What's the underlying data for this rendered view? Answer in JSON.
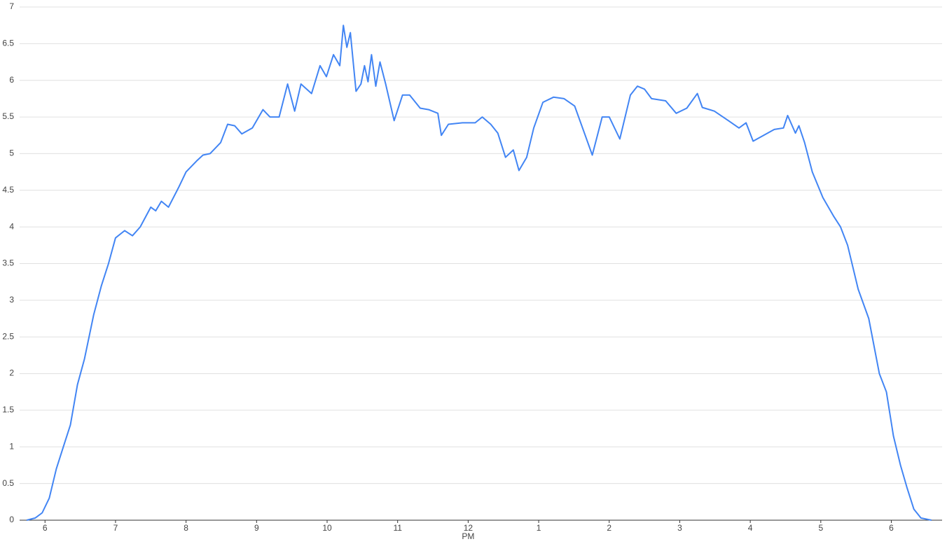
{
  "chart_data": {
    "type": "line",
    "x": [
      5.74,
      5.86,
      5.96,
      6.06,
      6.16,
      6.26,
      6.36,
      6.46,
      6.56,
      6.69,
      6.8,
      6.9,
      7.0,
      7.13,
      7.24,
      7.35,
      7.5,
      7.57,
      7.65,
      7.75,
      7.9,
      8.0,
      8.15,
      8.24,
      8.34,
      8.49,
      8.59,
      8.69,
      8.79,
      8.94,
      9.09,
      9.19,
      9.32,
      9.44,
      9.54,
      9.63,
      9.78,
      9.9,
      9.99,
      10.09,
      10.18,
      10.23,
      10.28,
      10.33,
      10.41,
      10.48,
      10.53,
      10.58,
      10.63,
      10.69,
      10.75,
      10.83,
      10.95,
      11.07,
      11.17,
      11.32,
      11.44,
      11.57,
      11.62,
      11.72,
      11.92,
      12.1,
      12.2,
      12.32,
      12.42,
      12.53,
      12.64,
      12.72,
      12.83,
      12.93,
      13.06,
      13.21,
      13.36,
      13.51,
      13.66,
      13.76,
      13.9,
      14.0,
      14.15,
      14.3,
      14.4,
      14.5,
      14.6,
      14.8,
      14.95,
      15.1,
      15.25,
      15.32,
      15.49,
      15.69,
      15.84,
      15.94,
      16.04,
      16.19,
      16.34,
      16.47,
      16.53,
      16.64,
      16.69,
      16.77,
      16.88,
      17.03,
      17.18,
      17.28,
      17.38,
      17.53,
      17.68,
      17.83,
      17.93,
      18.03,
      18.13,
      18.22,
      18.32,
      18.42,
      18.57
    ],
    "series": [
      {
        "color": "#4285f4",
        "values": [
          0,
          0.03,
          0.1,
          0.3,
          0.7,
          1.0,
          1.3,
          1.85,
          2.2,
          2.8,
          3.2,
          3.5,
          3.85,
          3.95,
          3.88,
          4.0,
          4.27,
          4.22,
          4.35,
          4.27,
          4.55,
          4.75,
          4.9,
          4.98,
          5.0,
          5.15,
          5.4,
          5.38,
          5.27,
          5.35,
          5.6,
          5.5,
          5.5,
          5.95,
          5.58,
          5.95,
          5.82,
          6.2,
          6.05,
          6.35,
          6.2,
          6.75,
          6.45,
          6.65,
          5.85,
          5.95,
          6.2,
          5.98,
          6.35,
          5.92,
          6.25,
          5.95,
          5.45,
          5.8,
          5.8,
          5.62,
          5.6,
          5.55,
          5.25,
          5.4,
          5.42,
          5.42,
          5.5,
          5.4,
          5.28,
          4.95,
          5.05,
          4.77,
          4.95,
          5.35,
          5.7,
          5.77,
          5.75,
          5.65,
          5.25,
          4.98,
          5.5,
          5.5,
          5.2,
          5.8,
          5.92,
          5.88,
          5.75,
          5.72,
          5.55,
          5.62,
          5.82,
          5.63,
          5.58,
          5.45,
          5.35,
          5.42,
          5.17,
          5.25,
          5.33,
          5.35,
          5.52,
          5.28,
          5.38,
          5.15,
          4.75,
          4.4,
          4.15,
          4.0,
          3.75,
          3.15,
          2.75,
          2.0,
          1.75,
          1.15,
          0.75,
          0.45,
          0.15,
          0.03,
          0
        ]
      }
    ],
    "xlim": [
      5.64,
      18.72
    ],
    "xticks": [
      6,
      7,
      8,
      9,
      10,
      11,
      {
        "value": 12,
        "label": "12",
        "sublabel": "PM"
      },
      {
        "value": 13,
        "label": "1"
      },
      {
        "value": 14,
        "label": "2"
      },
      {
        "value": 15,
        "label": "3"
      },
      {
        "value": 16,
        "label": "4"
      },
      {
        "value": 17,
        "label": "5"
      },
      {
        "value": 18,
        "label": "6"
      }
    ],
    "ylim": [
      0,
      7
    ],
    "yticks": [
      0,
      0.5,
      1,
      1.5,
      2,
      2.5,
      3,
      3.5,
      4,
      4.5,
      5,
      5.5,
      6,
      6.5,
      7
    ],
    "grid": true
  }
}
